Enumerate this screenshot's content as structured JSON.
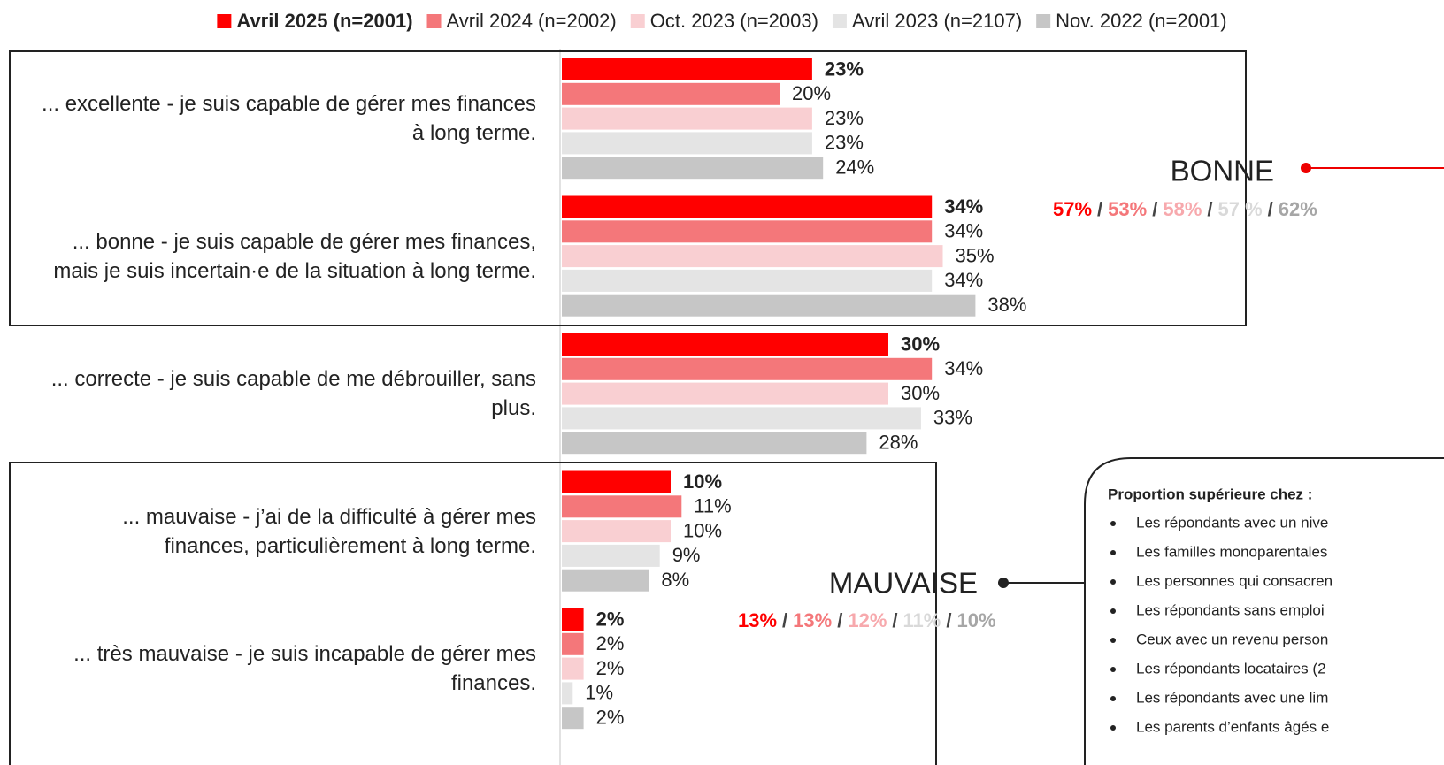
{
  "chart_data": {
    "type": "hbar",
    "categories": [
      "... excellente - je suis capable de gérer mes finances à long terme.",
      "... bonne - je suis capable de gérer mes finances, mais je suis incertain·e de la situation à long terme.",
      "... correcte - je suis capable de me débrouiller, sans plus.",
      "... mauvaise - j’ai de la difficulté à gérer mes finances, particulièrement à long terme.",
      "... très mauvaise - je suis incapable de gérer mes finances."
    ],
    "series": [
      {
        "name": "Avril 2025 (n=2001)",
        "color": "#ff0000",
        "values": [
          23,
          34,
          30,
          10,
          2
        ],
        "value_labels": [
          "23%",
          "34%",
          "30%",
          "10%",
          "2%"
        ]
      },
      {
        "name": "Avril 2024 (n=2002)",
        "color": "#f4777a",
        "values": [
          20,
          34,
          34,
          11,
          2
        ],
        "value_labels": [
          "20%",
          "34%",
          "34%",
          "11%",
          "2%"
        ]
      },
      {
        "name": "Oct. 2023 (n=2003)",
        "color": "#f9cfd2",
        "values": [
          23,
          35,
          30,
          10,
          2
        ],
        "value_labels": [
          "23%",
          "35%",
          "30%",
          "10%",
          "2%"
        ]
      },
      {
        "name": "Avril 2023 (n=2107)",
        "color": "#e4e4e4",
        "values": [
          23,
          34,
          33,
          9,
          1
        ],
        "value_labels": [
          "23%",
          "34%",
          "33%",
          "9%",
          "1%"
        ]
      },
      {
        "name": "Nov. 2022 (n=2001)",
        "color": "#c6c6c6",
        "values": [
          24,
          38,
          28,
          8,
          2
        ],
        "value_labels": [
          "24%",
          "38%",
          "28%",
          "8%",
          "2%"
        ]
      }
    ],
    "separator": "/",
    "annotations": [
      {
        "label": "BONNE",
        "values": [
          57,
          53,
          58,
          57,
          62
        ],
        "value_labels": [
          "57%",
          "53%",
          "58%",
          "57 %",
          "62%"
        ],
        "colors": [
          "#ff0000",
          "#f4777a",
          "#f7a9ad",
          "#d9d9d9",
          "#a6a6a6"
        ]
      },
      {
        "label": "MAUVAISE",
        "values": [
          13,
          13,
          12,
          11,
          10
        ],
        "value_labels": [
          "13%",
          "13%",
          "12%",
          "11%",
          "10%"
        ],
        "colors": [
          "#ff0000",
          "#f4777a",
          "#f7a9ad",
          "#d9d9d9",
          "#a6a6a6"
        ]
      }
    ],
    "callout": {
      "title": "Proportion supérieure chez :",
      "items": [
        "Les répondants avec un nive",
        "Les familles monoparentales",
        "Les personnes qui consacren",
        "Les répondants sans emploi",
        "Ceux avec un revenu person",
        "Les répondants locataires (2",
        "Les répondants avec une lim",
        "Les parents d’enfants âgés e"
      ]
    }
  }
}
